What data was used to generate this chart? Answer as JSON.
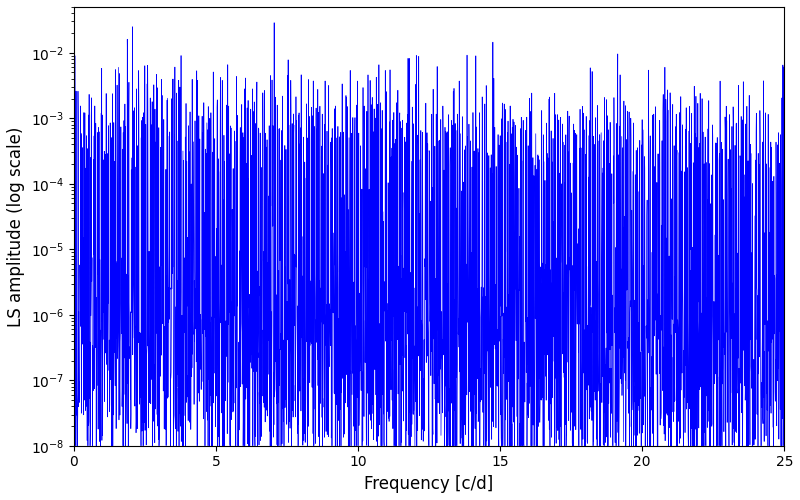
{
  "title": "",
  "xlabel": "Frequency [c/d]",
  "ylabel": "LS amplitude (log scale)",
  "xlim": [
    0,
    25
  ],
  "ylim": [
    1e-08,
    0.05
  ],
  "line_color": "#0000ff",
  "line_width": 0.5,
  "background_color": "#ffffff",
  "freq_min": 0.0,
  "freq_max": 25.0,
  "n_points": 3000,
  "seed": 42,
  "yticks": [
    1e-08,
    1e-07,
    1e-06,
    1e-05,
    0.0001,
    0.001,
    0.01
  ],
  "xticks": [
    0,
    5,
    10,
    15,
    20,
    25
  ],
  "figsize": [
    8.0,
    5.0
  ],
  "dpi": 100
}
